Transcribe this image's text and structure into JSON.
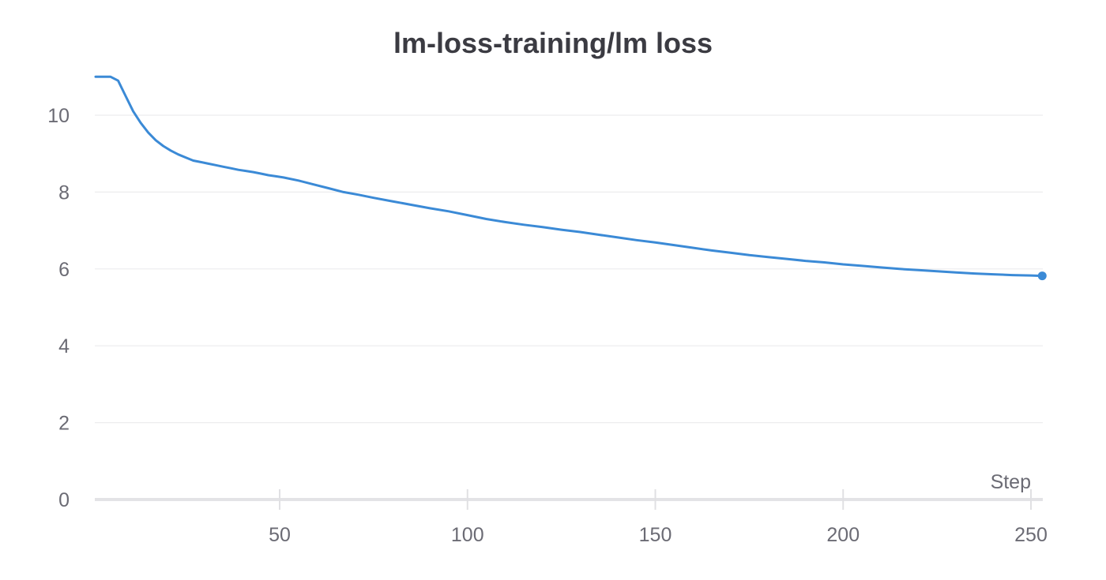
{
  "chart_data": {
    "type": "line",
    "title": "lm-loss-training/lm loss",
    "xlabel": "Step",
    "ylabel": "",
    "xlim": [
      1,
      253
    ],
    "ylim": [
      0,
      11
    ],
    "x_ticks": [
      50,
      100,
      150,
      200,
      250
    ],
    "y_ticks": [
      0,
      2,
      4,
      6,
      8,
      10
    ],
    "grid": "horizontal",
    "series": [
      {
        "color": "#3b8ad6",
        "x": [
          1,
          3,
          5,
          7,
          9,
          11,
          13,
          15,
          17,
          19,
          21,
          23,
          25,
          27,
          29,
          31,
          33,
          35,
          37,
          39,
          41,
          43,
          45,
          47,
          49,
          51,
          55,
          59,
          63,
          67,
          71,
          75,
          80,
          85,
          90,
          95,
          100,
          105,
          110,
          115,
          120,
          125,
          130,
          135,
          140,
          145,
          150,
          155,
          160,
          165,
          170,
          175,
          180,
          185,
          190,
          195,
          200,
          205,
          210,
          215,
          220,
          225,
          230,
          235,
          240,
          245,
          250,
          253
        ],
        "y": [
          11.0,
          11.0,
          11.0,
          10.9,
          10.5,
          10.1,
          9.8,
          9.55,
          9.35,
          9.2,
          9.08,
          8.98,
          8.9,
          8.82,
          8.78,
          8.74,
          8.7,
          8.66,
          8.62,
          8.58,
          8.55,
          8.52,
          8.48,
          8.44,
          8.41,
          8.38,
          8.3,
          8.2,
          8.1,
          8.0,
          7.93,
          7.85,
          7.76,
          7.67,
          7.58,
          7.5,
          7.4,
          7.3,
          7.22,
          7.15,
          7.09,
          7.02,
          6.96,
          6.89,
          6.82,
          6.75,
          6.69,
          6.62,
          6.55,
          6.48,
          6.42,
          6.36,
          6.31,
          6.26,
          6.21,
          6.17,
          6.12,
          6.08,
          6.04,
          6.0,
          5.97,
          5.94,
          5.91,
          5.88,
          5.86,
          5.84,
          5.83,
          5.82
        ]
      }
    ]
  }
}
